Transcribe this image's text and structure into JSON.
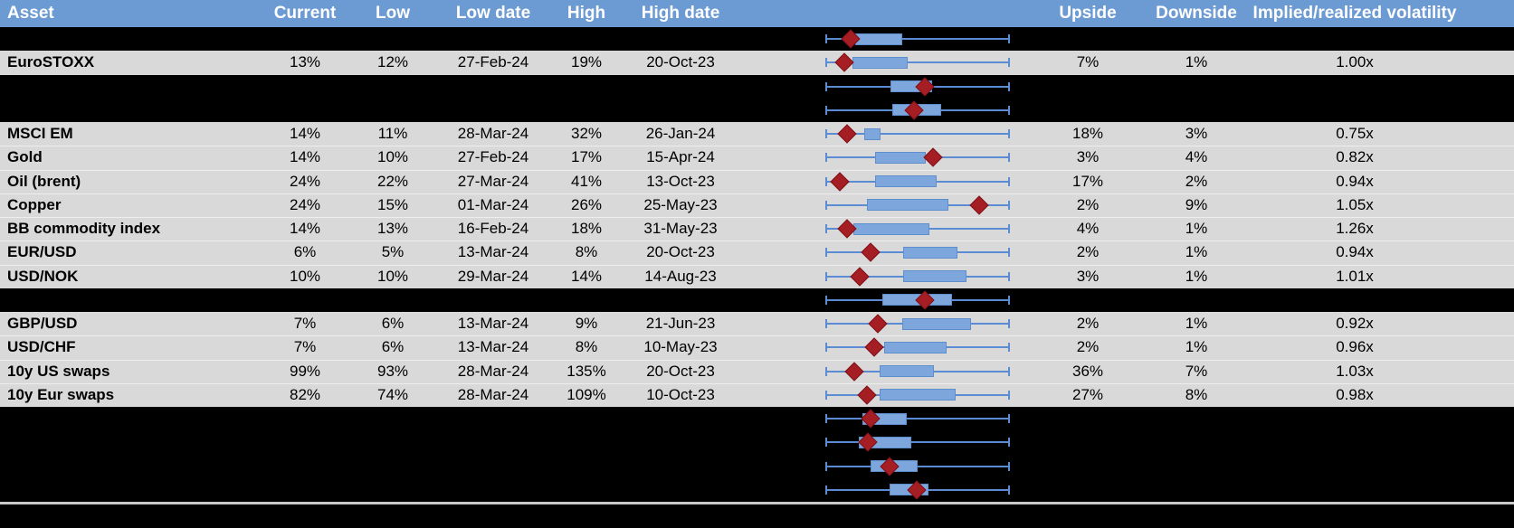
{
  "header": {
    "asset": "Asset",
    "current": "Current",
    "low": "Low",
    "low_date": "Low date",
    "high": "High",
    "high_date": "High date",
    "upside": "Upside",
    "downside": "Downside",
    "vol": "Implied/realized volatility"
  },
  "colors": {
    "header_bg": "#6C9BD3",
    "header_text": "#FFFFFF",
    "row_bg": "#D9D9D9",
    "hidden_row_bg": "#000000",
    "box_fill": "#7DA7DC",
    "box_border": "#5E8ECB",
    "whisker": "#5B8BD3",
    "marker": "#A41E24",
    "divider": "#C9C9C9"
  },
  "chart_data": {
    "type": "boxplot",
    "note": "one horizontal box-whisker per row; whiskers span full axis [0,1]; q1/q3 = box edges, marker = red diamond position, as fraction of axis width",
    "x_range": [
      0,
      1
    ]
  },
  "rows": [
    {
      "kind": "hidden",
      "box": {
        "q1": 0.16,
        "q3": 0.415,
        "marker": 0.135
      }
    },
    {
      "kind": "data",
      "asset": "EuroSTOXX",
      "current": "13%",
      "low": "12%",
      "low_date": "27-Feb-24",
      "high": "19%",
      "high_date": "20-Oct-23",
      "upside": "7%",
      "downside": "1%",
      "vol": "1.00x",
      "box": {
        "q1": 0.145,
        "q3": 0.445,
        "marker": 0.101
      }
    },
    {
      "kind": "hidden",
      "box": {
        "q1": 0.351,
        "q3": 0.577,
        "marker": 0.538
      }
    },
    {
      "kind": "hidden",
      "box": {
        "q1": 0.361,
        "q3": 0.627,
        "marker": 0.479
      }
    },
    {
      "kind": "data",
      "asset": "MSCI EM",
      "current": "14%",
      "low": "11%",
      "low_date": "28-Mar-24",
      "high": "32%",
      "high_date": "26-Jan-24",
      "upside": "18%",
      "downside": "3%",
      "vol": "0.75x",
      "box": {
        "q1": 0.209,
        "q3": 0.297,
        "marker": 0.12
      }
    },
    {
      "kind": "data",
      "asset": "Gold",
      "current": "14%",
      "low": "10%",
      "low_date": "27-Feb-24",
      "high": "17%",
      "high_date": "15-Apr-24",
      "upside": "3%",
      "downside": "4%",
      "vol": "0.82x",
      "box": {
        "q1": 0.268,
        "q3": 0.543,
        "marker": 0.582
      }
    },
    {
      "kind": "data",
      "asset": "Oil (brent)",
      "current": "24%",
      "low": "22%",
      "low_date": "27-Mar-24",
      "high": "41%",
      "high_date": "13-Oct-23",
      "upside": "17%",
      "downside": "2%",
      "vol": "0.94x",
      "box": {
        "q1": 0.268,
        "q3": 0.602,
        "marker": 0.076
      }
    },
    {
      "kind": "data",
      "asset": "Copper",
      "current": "24%",
      "low": "15%",
      "low_date": "01-Mar-24",
      "high": "26%",
      "high_date": "25-May-23",
      "upside": "2%",
      "downside": "9%",
      "vol": "1.05x",
      "box": {
        "q1": 0.224,
        "q3": 0.666,
        "marker": 0.833
      }
    },
    {
      "kind": "data",
      "asset": "BB commodity index",
      "current": "14%",
      "low": "13%",
      "low_date": "16-Feb-24",
      "high": "18%",
      "high_date": "31-May-23",
      "upside": "4%",
      "downside": "1%",
      "vol": "1.26x",
      "box": {
        "q1": 0.15,
        "q3": 0.563,
        "marker": 0.12
      }
    },
    {
      "kind": "data",
      "asset": "EUR/USD",
      "current": "6%",
      "low": "5%",
      "low_date": "13-Mar-24",
      "high": "8%",
      "high_date": "20-Oct-23",
      "upside": "2%",
      "downside": "1%",
      "vol": "0.94x",
      "box": {
        "q1": 0.42,
        "q3": 0.715,
        "marker": 0.243
      }
    },
    {
      "kind": "data",
      "asset": "USD/NOK",
      "current": "10%",
      "low": "10%",
      "low_date": "29-Mar-24",
      "high": "14%",
      "high_date": "14-Aug-23",
      "upside": "3%",
      "downside": "1%",
      "vol": "1.01x",
      "box": {
        "q1": 0.42,
        "q3": 0.764,
        "marker": 0.184
      }
    },
    {
      "kind": "hidden",
      "box": {
        "q1": 0.307,
        "q3": 0.686,
        "marker": 0.538
      }
    },
    {
      "kind": "data",
      "asset": "GBP/USD",
      "current": "7%",
      "low": "6%",
      "low_date": "13-Mar-24",
      "high": "9%",
      "high_date": "21-Jun-23",
      "upside": "2%",
      "downside": "1%",
      "vol": "0.92x",
      "box": {
        "q1": 0.415,
        "q3": 0.789,
        "marker": 0.283
      }
    },
    {
      "kind": "data",
      "asset": "USD/CHF",
      "current": "7%",
      "low": "6%",
      "low_date": "13-Mar-24",
      "high": "8%",
      "high_date": "10-May-23",
      "upside": "2%",
      "downside": "1%",
      "vol": "0.96x",
      "box": {
        "q1": 0.317,
        "q3": 0.656,
        "marker": 0.263
      }
    },
    {
      "kind": "data",
      "asset": "10y US swaps",
      "current": "99%",
      "low": "93%",
      "low_date": "28-Mar-24",
      "high": "135%",
      "high_date": "20-Oct-23",
      "upside": "36%",
      "downside": "7%",
      "vol": "1.03x",
      "box": {
        "q1": 0.292,
        "q3": 0.587,
        "marker": 0.155
      }
    },
    {
      "kind": "data",
      "asset": "10y Eur swaps",
      "current": "82%",
      "low": "74%",
      "low_date": "28-Mar-24",
      "high": "109%",
      "high_date": "10-Oct-23",
      "upside": "27%",
      "downside": "8%",
      "vol": "0.98x",
      "box": {
        "q1": 0.292,
        "q3": 0.705,
        "marker": 0.224
      }
    },
    {
      "kind": "hidden",
      "box": {
        "q1": 0.199,
        "q3": 0.44,
        "marker": 0.243
      }
    },
    {
      "kind": "hidden",
      "box": {
        "q1": 0.179,
        "q3": 0.464,
        "marker": 0.229
      }
    },
    {
      "kind": "hidden",
      "box": {
        "q1": 0.243,
        "q3": 0.499,
        "marker": 0.346
      }
    },
    {
      "kind": "hidden",
      "box": {
        "q1": 0.346,
        "q3": 0.558,
        "marker": 0.494
      }
    }
  ]
}
